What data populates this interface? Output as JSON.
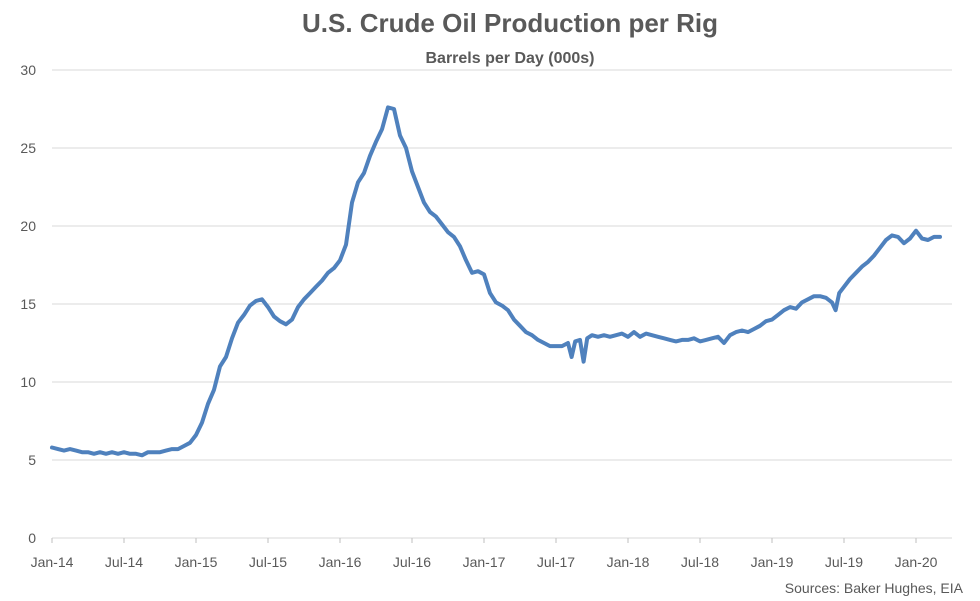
{
  "chart_data": {
    "type": "line",
    "title": "U.S. Crude Oil Production per Rig",
    "subtitle": "Barrels per Day (000s)",
    "xlabel": "",
    "ylabel": "",
    "ylim": [
      0,
      30
    ],
    "y_ticks": [
      0,
      5,
      10,
      15,
      20,
      25,
      30
    ],
    "x_ticks": [
      "Jan-14",
      "Jul-14",
      "Jan-15",
      "Jul-15",
      "Jan-16",
      "Jul-16",
      "Jan-17",
      "Jul-17",
      "Jan-18",
      "Jul-18",
      "Jan-19",
      "Jul-19",
      "Jan-20"
    ],
    "grid": true,
    "legend": "none",
    "source": "Sources: Baker Hughes, EIA",
    "line_color": "#4f81bd",
    "series": [
      {
        "values": [
          [
            0,
            5.8
          ],
          [
            0.5,
            5.7
          ],
          [
            1,
            5.6
          ],
          [
            1.5,
            5.7
          ],
          [
            2,
            5.6
          ],
          [
            2.5,
            5.5
          ],
          [
            3,
            5.5
          ],
          [
            3.5,
            5.4
          ],
          [
            4,
            5.5
          ],
          [
            4.5,
            5.4
          ],
          [
            5,
            5.5
          ],
          [
            5.5,
            5.4
          ],
          [
            6,
            5.5
          ],
          [
            6.5,
            5.4
          ],
          [
            7,
            5.4
          ],
          [
            7.5,
            5.3
          ],
          [
            8,
            5.5
          ],
          [
            8.5,
            5.5
          ],
          [
            9,
            5.5
          ],
          [
            9.5,
            5.6
          ],
          [
            10,
            5.7
          ],
          [
            10.5,
            5.7
          ],
          [
            11,
            5.9
          ],
          [
            11.5,
            6.1
          ],
          [
            12,
            6.6
          ],
          [
            12.5,
            7.4
          ],
          [
            13,
            8.6
          ],
          [
            13.5,
            9.5
          ],
          [
            14,
            11.0
          ],
          [
            14.5,
            11.6
          ],
          [
            15,
            12.8
          ],
          [
            15.5,
            13.8
          ],
          [
            16,
            14.3
          ],
          [
            16.5,
            14.9
          ],
          [
            17,
            15.2
          ],
          [
            17.5,
            15.3
          ],
          [
            18,
            14.8
          ],
          [
            18.5,
            14.2
          ],
          [
            19,
            13.9
          ],
          [
            19.5,
            13.7
          ],
          [
            20,
            14.0
          ],
          [
            20.5,
            14.8
          ],
          [
            21,
            15.3
          ],
          [
            21.5,
            15.7
          ],
          [
            22,
            16.1
          ],
          [
            22.5,
            16.5
          ],
          [
            23,
            17.0
          ],
          [
            23.5,
            17.3
          ],
          [
            24,
            17.8
          ],
          [
            24.5,
            18.8
          ],
          [
            25,
            21.5
          ],
          [
            25.5,
            22.8
          ],
          [
            26,
            23.4
          ],
          [
            26.5,
            24.5
          ],
          [
            27,
            25.4
          ],
          [
            27.5,
            26.2
          ],
          [
            28,
            27.6
          ],
          [
            28.5,
            27.5
          ],
          [
            29,
            25.8
          ],
          [
            29.5,
            25.0
          ],
          [
            30,
            23.5
          ],
          [
            30.5,
            22.5
          ],
          [
            31,
            21.5
          ],
          [
            31.5,
            20.9
          ],
          [
            32,
            20.6
          ],
          [
            32.5,
            20.1
          ],
          [
            33,
            19.6
          ],
          [
            33.5,
            19.3
          ],
          [
            34,
            18.7
          ],
          [
            34.5,
            17.8
          ],
          [
            35,
            17.0
          ],
          [
            35.5,
            17.1
          ],
          [
            36,
            16.9
          ],
          [
            36.5,
            15.7
          ],
          [
            37,
            15.1
          ],
          [
            37.5,
            14.9
          ],
          [
            38,
            14.6
          ],
          [
            38.5,
            14.0
          ],
          [
            39,
            13.6
          ],
          [
            39.5,
            13.2
          ],
          [
            40,
            13.0
          ],
          [
            40.5,
            12.7
          ],
          [
            41,
            12.5
          ],
          [
            41.5,
            12.3
          ],
          [
            42,
            12.3
          ],
          [
            42.5,
            12.3
          ],
          [
            43,
            12.5
          ],
          [
            43.3,
            11.6
          ],
          [
            43.6,
            12.6
          ],
          [
            44,
            12.7
          ],
          [
            44.3,
            11.3
          ],
          [
            44.6,
            12.8
          ],
          [
            45,
            13.0
          ],
          [
            45.5,
            12.9
          ],
          [
            46,
            13.0
          ],
          [
            46.5,
            12.9
          ],
          [
            47,
            13.0
          ],
          [
            47.5,
            13.1
          ],
          [
            48,
            12.9
          ],
          [
            48.5,
            13.2
          ],
          [
            49,
            12.9
          ],
          [
            49.5,
            13.1
          ],
          [
            50,
            13.0
          ],
          [
            50.5,
            12.9
          ],
          [
            51,
            12.8
          ],
          [
            51.5,
            12.7
          ],
          [
            52,
            12.6
          ],
          [
            52.5,
            12.7
          ],
          [
            53,
            12.7
          ],
          [
            53.5,
            12.8
          ],
          [
            54,
            12.6
          ],
          [
            54.5,
            12.7
          ],
          [
            55,
            12.8
          ],
          [
            55.5,
            12.9
          ],
          [
            56,
            12.5
          ],
          [
            56.5,
            13.0
          ],
          [
            57,
            13.2
          ],
          [
            57.5,
            13.3
          ],
          [
            58,
            13.2
          ],
          [
            58.5,
            13.4
          ],
          [
            59,
            13.6
          ],
          [
            59.5,
            13.9
          ],
          [
            60,
            14.0
          ],
          [
            60.5,
            14.3
          ],
          [
            61,
            14.6
          ],
          [
            61.5,
            14.8
          ],
          [
            62,
            14.7
          ],
          [
            62.5,
            15.1
          ],
          [
            63,
            15.3
          ],
          [
            63.5,
            15.5
          ],
          [
            64,
            15.5
          ],
          [
            64.5,
            15.4
          ],
          [
            65,
            15.1
          ],
          [
            65.3,
            14.6
          ],
          [
            65.6,
            15.7
          ],
          [
            66,
            16.1
          ],
          [
            66.5,
            16.6
          ],
          [
            67,
            17.0
          ],
          [
            67.5,
            17.4
          ],
          [
            68,
            17.7
          ],
          [
            68.5,
            18.1
          ],
          [
            69,
            18.6
          ],
          [
            69.5,
            19.1
          ],
          [
            70,
            19.4
          ],
          [
            70.5,
            19.3
          ],
          [
            71,
            18.9
          ],
          [
            71.5,
            19.2
          ],
          [
            72,
            19.7
          ],
          [
            72.5,
            19.2
          ],
          [
            73,
            19.1
          ],
          [
            73.5,
            19.3
          ],
          [
            74,
            19.3
          ]
        ]
      }
    ]
  }
}
